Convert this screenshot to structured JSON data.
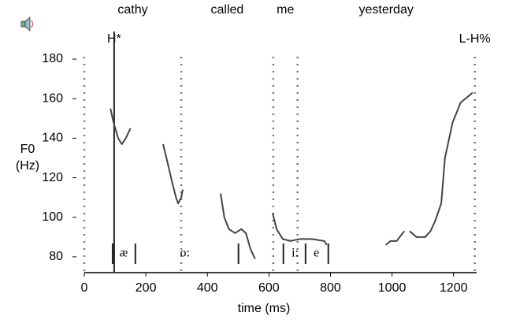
{
  "chart_data": {
    "type": "line",
    "words": [
      "cathy",
      "called",
      "me",
      "yesterday"
    ],
    "boundaries": [
      0,
      315,
      614,
      693,
      1269
    ],
    "tones": [
      {
        "label": "H*",
        "time": 97
      },
      {
        "label": "L-H%",
        "time": 1269
      }
    ],
    "phones": [
      {
        "label": "æ",
        "time": 128
      },
      {
        "label": "o:",
        "time": 327
      },
      {
        "label": "i:",
        "time": 685
      },
      {
        "label": "e",
        "time": 754
      }
    ],
    "segment_marks": [
      92,
      166,
      501,
      647,
      719,
      793
    ],
    "ylabel": [
      "F0",
      "(Hz)"
    ],
    "xlabel": "time (ms)",
    "xlim": [
      0,
      1275
    ],
    "xticks": [
      0,
      200,
      400,
      600,
      800,
      1000,
      1200
    ],
    "ylim": [
      72,
      182
    ],
    "yticks": [
      80,
      100,
      120,
      140,
      160,
      180
    ],
    "series": [
      {
        "name": "F0",
        "color": "#444444",
        "x": [
          85,
          95,
          110,
          122,
          135,
          150,
          200,
          256,
          270,
          285,
          298,
          305,
          315,
          320,
          400,
          443,
          455,
          470,
          490,
          510,
          525,
          540,
          555,
          590,
          612,
          625,
          645,
          670,
          700,
          740,
          780,
          788,
          900,
          980,
          995,
          1015,
          1040,
          1048,
          1057,
          1080,
          1108,
          1125,
          1140,
          1160,
          1172,
          1197,
          1223,
          1262
        ],
        "values": [
          155,
          148,
          140,
          137,
          140,
          145,
          null,
          137,
          128,
          118,
          110,
          107,
          110,
          114,
          null,
          112,
          100,
          94,
          92,
          94,
          92,
          84,
          79,
          null,
          102,
          94,
          89,
          88,
          89,
          89,
          88,
          86,
          null,
          86,
          88,
          88,
          93,
          null,
          93,
          90,
          90,
          93,
          98,
          107,
          130,
          148,
          158,
          163
        ]
      }
    ]
  }
}
